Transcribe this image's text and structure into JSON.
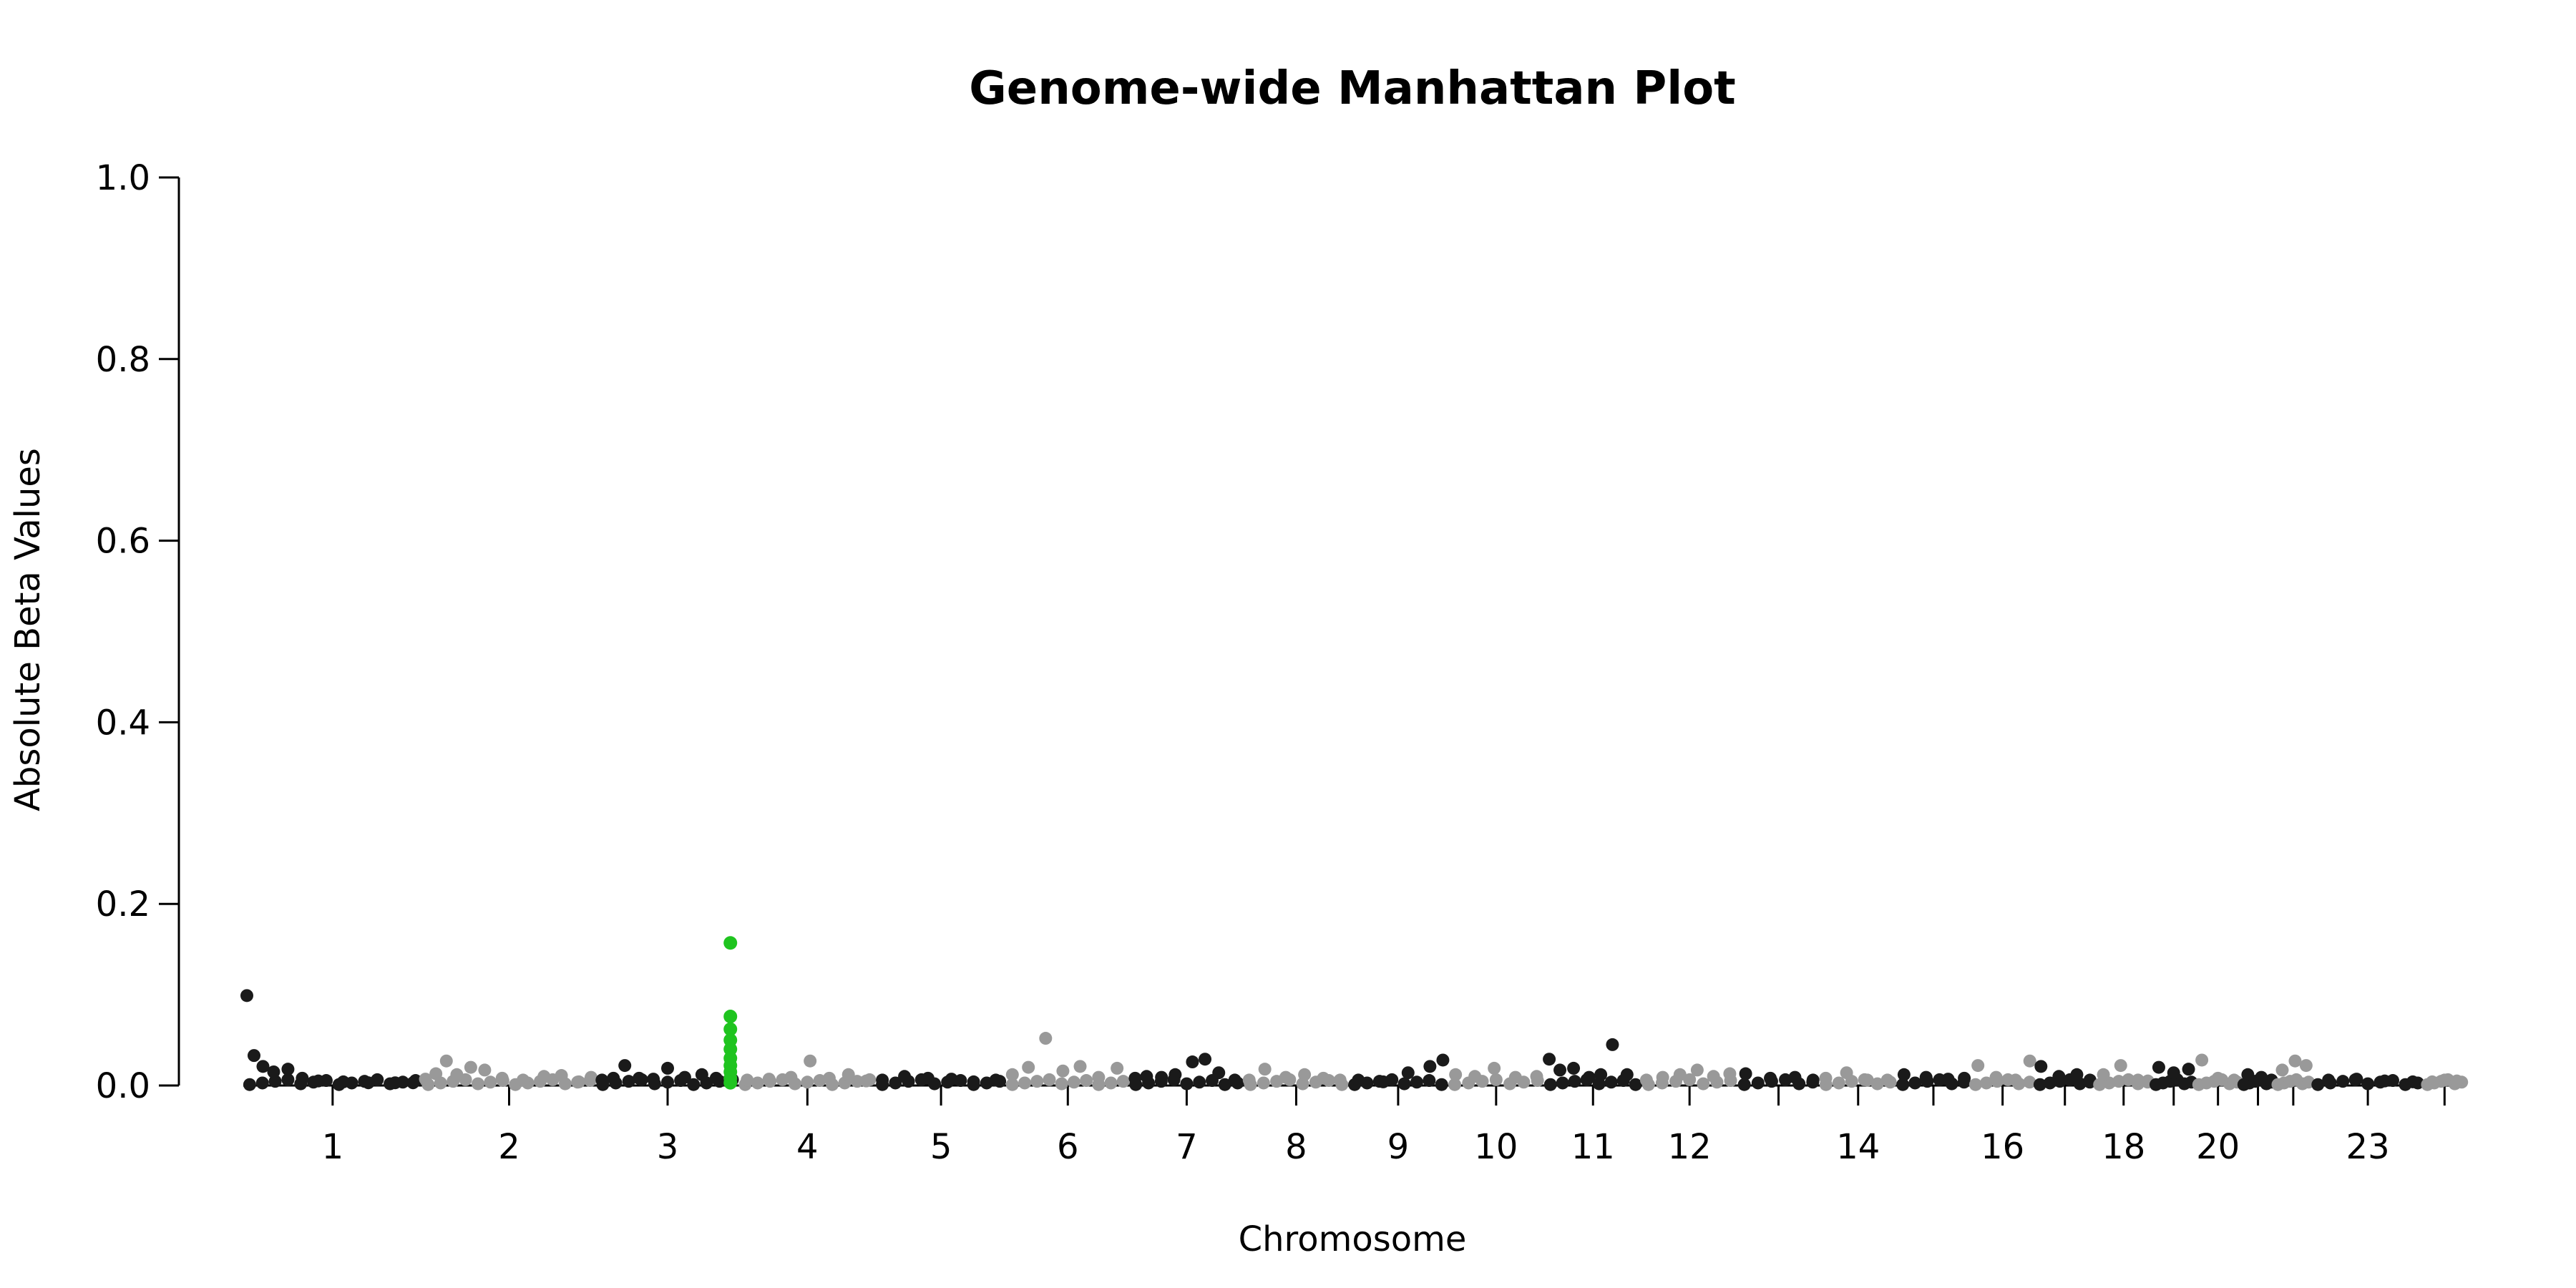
{
  "chart_data": {
    "type": "scatter",
    "title": "Genome-wide Manhattan Plot",
    "xlabel": "Chromosome",
    "ylabel": "Absolute Beta Values",
    "ylim": [
      0,
      1.0
    ],
    "y_ticks": [
      "0.0",
      "0.2",
      "0.4",
      "0.6",
      "0.8",
      "1.0"
    ],
    "x_tick_labels": [
      "1",
      "2",
      "3",
      "4",
      "5",
      "6",
      "7",
      "8",
      "9",
      "10",
      "11",
      "12",
      "14",
      "16",
      "18",
      "20",
      "23"
    ],
    "chromosomes": [
      "1",
      "2",
      "3",
      "4",
      "5",
      "6",
      "7",
      "8",
      "9",
      "10",
      "11",
      "12",
      "13",
      "14",
      "15",
      "16",
      "17",
      "18",
      "19",
      "20",
      "21",
      "22",
      "23",
      "24"
    ],
    "chromosome_position_range": [
      0,
      100
    ],
    "grid": false,
    "legend": "none",
    "colors": {
      "odd_chromosomes": "#1a1a1a",
      "even_chromosomes": "#999999",
      "highlight": "#1fc41f"
    },
    "highlight": {
      "chromosome": "3",
      "position": 94,
      "values": [
        0.157,
        0.076,
        0.062,
        0.05,
        0.04,
        0.03,
        0.022,
        0.015,
        0.008,
        0.003
      ]
    },
    "series": [
      {
        "chromosome": "1",
        "points": [
          [
            2,
            0.099
          ],
          [
            6,
            0.033
          ],
          [
            11,
            0.021
          ],
          [
            17,
            0.015
          ],
          [
            25,
            0.018
          ],
          [
            33,
            0.008
          ],
          [
            42,
            0.005
          ],
          [
            56,
            0.004
          ],
          [
            70,
            0.003
          ],
          [
            85,
            0.003
          ],
          [
            95,
            0.003
          ]
        ]
      },
      {
        "chromosome": "2",
        "points": [
          [
            2,
            0.007
          ],
          [
            8,
            0.013
          ],
          [
            14,
            0.027
          ],
          [
            20,
            0.012
          ],
          [
            28,
            0.02
          ],
          [
            36,
            0.017
          ],
          [
            46,
            0.008
          ],
          [
            58,
            0.006
          ],
          [
            70,
            0.01
          ],
          [
            80,
            0.011
          ],
          [
            90,
            0.004
          ],
          [
            97,
            0.009
          ]
        ]
      },
      {
        "chromosome": "3",
        "points": [
          [
            4,
            0.006
          ],
          [
            12,
            0.008
          ],
          [
            20,
            0.022
          ],
          [
            30,
            0.008
          ],
          [
            40,
            0.007
          ],
          [
            50,
            0.019
          ],
          [
            62,
            0.009
          ],
          [
            74,
            0.012
          ],
          [
            84,
            0.008
          ]
        ]
      },
      {
        "chromosome": "4",
        "points": [
          [
            6,
            0.006
          ],
          [
            22,
            0.007
          ],
          [
            38,
            0.009
          ],
          [
            52,
            0.027
          ],
          [
            66,
            0.008
          ],
          [
            80,
            0.012
          ],
          [
            93,
            0.005
          ]
        ]
      },
      {
        "chromosome": "5",
        "points": [
          [
            5,
            0.006
          ],
          [
            22,
            0.01
          ],
          [
            40,
            0.008
          ],
          [
            58,
            0.007
          ],
          [
            75,
            0.004
          ],
          [
            92,
            0.006
          ]
        ]
      },
      {
        "chromosome": "6",
        "points": [
          [
            5,
            0.012
          ],
          [
            18,
            0.02
          ],
          [
            32,
            0.052
          ],
          [
            46,
            0.016
          ],
          [
            60,
            0.021
          ],
          [
            75,
            0.009
          ],
          [
            90,
            0.019
          ]
        ]
      },
      {
        "chromosome": "7",
        "points": [
          [
            5,
            0.008
          ],
          [
            15,
            0.01
          ],
          [
            28,
            0.009
          ],
          [
            40,
            0.012
          ],
          [
            55,
            0.026
          ],
          [
            66,
            0.029
          ],
          [
            78,
            0.014
          ],
          [
            92,
            0.006
          ]
        ]
      },
      {
        "chromosome": "8",
        "points": [
          [
            5,
            0.006
          ],
          [
            20,
            0.018
          ],
          [
            40,
            0.009
          ],
          [
            58,
            0.012
          ],
          [
            76,
            0.008
          ],
          [
            92,
            0.006
          ]
        ]
      },
      {
        "chromosome": "9",
        "points": [
          [
            10,
            0.006
          ],
          [
            35,
            0.004
          ],
          [
            60,
            0.014
          ],
          [
            82,
            0.021
          ],
          [
            95,
            0.028
          ]
        ]
      },
      {
        "chromosome": "10",
        "points": [
          [
            8,
            0.012
          ],
          [
            28,
            0.01
          ],
          [
            48,
            0.019
          ],
          [
            70,
            0.009
          ],
          [
            92,
            0.01
          ]
        ]
      },
      {
        "chromosome": "11",
        "points": [
          [
            5,
            0.029
          ],
          [
            16,
            0.017
          ],
          [
            30,
            0.019
          ],
          [
            46,
            0.009
          ],
          [
            58,
            0.012
          ],
          [
            70,
            0.045
          ],
          [
            85,
            0.012
          ]
        ]
      },
      {
        "chromosome": "12",
        "points": [
          [
            5,
            0.006
          ],
          [
            22,
            0.009
          ],
          [
            40,
            0.012
          ],
          [
            58,
            0.017
          ],
          [
            75,
            0.01
          ],
          [
            92,
            0.013
          ]
        ]
      },
      {
        "chromosome": "13",
        "points": [
          [
            10,
            0.013
          ],
          [
            40,
            0.008
          ],
          [
            70,
            0.009
          ],
          [
            92,
            0.006
          ]
        ]
      },
      {
        "chromosome": "14",
        "points": [
          [
            8,
            0.008
          ],
          [
            35,
            0.014
          ],
          [
            62,
            0.006
          ],
          [
            88,
            0.006
          ]
        ]
      },
      {
        "chromosome": "15",
        "points": [
          [
            10,
            0.012
          ],
          [
            40,
            0.009
          ],
          [
            70,
            0.007
          ],
          [
            92,
            0.008
          ]
        ]
      },
      {
        "chromosome": "16",
        "points": [
          [
            12,
            0.022
          ],
          [
            40,
            0.009
          ],
          [
            70,
            0.006
          ],
          [
            92,
            0.027
          ]
        ]
      },
      {
        "chromosome": "17",
        "points": [
          [
            10,
            0.021
          ],
          [
            40,
            0.01
          ],
          [
            70,
            0.012
          ],
          [
            92,
            0.006
          ]
        ]
      },
      {
        "chromosome": "18",
        "points": [
          [
            15,
            0.012
          ],
          [
            45,
            0.022
          ],
          [
            75,
            0.006
          ],
          [
            92,
            0.005
          ]
        ]
      },
      {
        "chromosome": "19",
        "points": [
          [
            15,
            0.02
          ],
          [
            50,
            0.014
          ],
          [
            85,
            0.018
          ]
        ]
      },
      {
        "chromosome": "20",
        "points": [
          [
            15,
            0.028
          ],
          [
            50,
            0.008
          ],
          [
            85,
            0.006
          ]
        ]
      },
      {
        "chromosome": "21",
        "points": [
          [
            20,
            0.012
          ],
          [
            60,
            0.009
          ],
          [
            90,
            0.006
          ]
        ]
      },
      {
        "chromosome": "22",
        "points": [
          [
            20,
            0.017
          ],
          [
            55,
            0.027
          ],
          [
            85,
            0.022
          ]
        ]
      },
      {
        "chromosome": "23",
        "points": [
          [
            15,
            0.006
          ],
          [
            40,
            0.007
          ],
          [
            65,
            0.005
          ],
          [
            90,
            0.004
          ]
        ]
      },
      {
        "chromosome": "24",
        "points": [
          [
            20,
            0.004
          ],
          [
            50,
            0.006
          ],
          [
            80,
            0.005
          ]
        ]
      }
    ]
  }
}
